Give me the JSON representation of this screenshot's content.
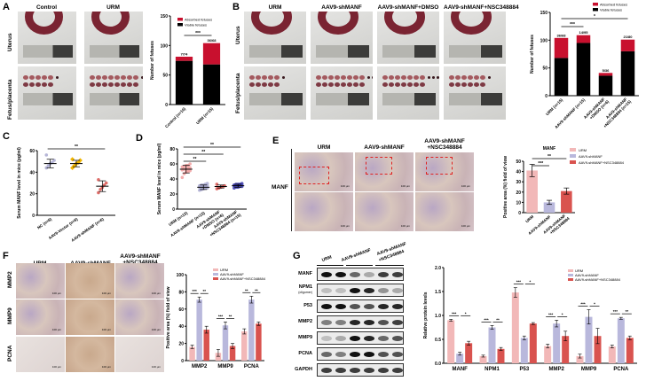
{
  "panels": {
    "A": {
      "letter": "A",
      "columns": [
        "Control",
        "URM"
      ],
      "rows": [
        "Uterus",
        "Fetus/placenta"
      ]
    },
    "B": {
      "letter": "B",
      "columns": [
        "URM",
        "AAV9-shMANF",
        "AAV9-shMANF+DMSO",
        "AAV9-shMANF+NSC348884"
      ],
      "rows": [
        "Uterus",
        "Fetus/placenta"
      ]
    },
    "C": {
      "letter": "C"
    },
    "D": {
      "letter": "D"
    },
    "E": {
      "letter": "E",
      "columns": [
        "URM",
        "AAV9-shMANF",
        "AAV9-shMANF",
        "+NSC348884"
      ],
      "row": "MANF",
      "scale": "100 μm"
    },
    "F": {
      "letter": "F",
      "columns": [
        "URM",
        "AAV9-shMANF",
        "AAV9-shMANF",
        "+NSC348884"
      ],
      "rows": [
        "MMP2",
        "MMP9",
        "PCNA"
      ],
      "scale": "100 μm"
    },
    "G": {
      "letter": "G",
      "lanes": [
        "URM",
        "AAV9-shMANF",
        "AAV9-shMANF",
        "+NSC348884"
      ],
      "blots": [
        "MANF",
        "NPM1",
        "P53",
        "MMP2",
        "MMP9",
        "PCNA",
        "GAPDH"
      ],
      "npm1_sub": "(oligomer)"
    }
  },
  "colors": {
    "absorbed": "#c8102e",
    "viable": "#000000",
    "urm": "#f2b8b8",
    "shmanf": "#b9b8dc",
    "nsc": "#d9534f"
  },
  "chart_data": [
    {
      "id": "A",
      "type": "bar",
      "stacked": true,
      "ylabel": "Number of fetuses",
      "ylim": [
        0,
        150
      ],
      "yticks": [
        0,
        50,
        100,
        150
      ],
      "categories": [
        "Control (n=10)",
        "URM (n=15)"
      ],
      "series": [
        {
          "name": "Viable fetuses",
          "values": [
            74,
            68
          ]
        },
        {
          "name": "Absorbed fetuses",
          "values": [
            7,
            36
          ]
        }
      ],
      "bar_labels": [
        "7/74",
        "36/68"
      ],
      "legend": [
        "Absorbed fetuses",
        "Viable fetuses"
      ],
      "significance": [
        {
          "from": 0,
          "to": 1,
          "label": "***"
        }
      ]
    },
    {
      "id": "B",
      "type": "bar",
      "stacked": true,
      "ylabel": "Number of fetuses",
      "ylim": [
        0,
        150
      ],
      "yticks": [
        0,
        50,
        100,
        150
      ],
      "categories": [
        "URM (n=15)",
        "AAV9-shMANF (n=15)",
        "AAV9-shMANF +DMSO (n=6)",
        "AAV9-shMANF +NSC348884 (n=15)"
      ],
      "series": [
        {
          "name": "Viable fetuses",
          "values": [
            68,
            95,
            36,
            80
          ]
        },
        {
          "name": "Absorbed fetuses",
          "values": [
            36,
            14,
            5,
            21
          ]
        }
      ],
      "bar_labels": [
        "36/68",
        "14/95",
        "5/36",
        "21/80"
      ],
      "legend": [
        "Absorbed fetuses",
        "Viable fetuses"
      ],
      "significance": [
        {
          "from": 0,
          "to": 1,
          "label": "***"
        },
        {
          "from": 0,
          "to": 3,
          "label": "*"
        }
      ]
    },
    {
      "id": "C",
      "type": "scatter",
      "ylabel": "Serum MANF level in mice (pg/ml)",
      "ylim": [
        0,
        60
      ],
      "yticks": [
        0,
        20,
        40,
        60
      ],
      "categories": [
        "NC (n=6)",
        "AAV9-Vector (n=6)",
        "AAV9-shMANF (n=6)"
      ],
      "colors": [
        "#a9a9d0",
        "#f0b400",
        "#d9534f"
      ],
      "points": [
        [
          44,
          46,
          48,
          49,
          51,
          56
        ],
        [
          44,
          46,
          48,
          49,
          51,
          52
        ],
        [
          21,
          24,
          26,
          28,
          30,
          33
        ]
      ],
      "mean": [
        48,
        48,
        27
      ],
      "sd": [
        4,
        3,
        5
      ],
      "significance": [
        {
          "from": 0,
          "to": 2,
          "label": "**"
        }
      ]
    },
    {
      "id": "D",
      "type": "scatter",
      "ylabel": "Serum MANF level in mice (pg/ml)",
      "ylim": [
        0,
        80
      ],
      "yticks": [
        0,
        20,
        40,
        60,
        80
      ],
      "categories": [
        "URM (n=15)",
        "AAV9-shMANF (n=15)",
        "AAV9-shMANF +DMSO (n=6)",
        "AAV9-shMANF +NSC348884 (n=15)"
      ],
      "colors": [
        "#f2a0a0",
        "#a9a9d0",
        "#d9534f",
        "#3f3fb0"
      ],
      "points": [
        [
          42,
          47,
          49,
          50,
          51,
          52,
          53,
          53,
          54,
          55,
          56,
          57,
          58,
          58,
          60
        ],
        [
          25,
          26,
          27,
          28,
          28,
          29,
          29,
          30,
          30,
          31,
          31,
          32,
          32,
          33,
          34
        ],
        [
          27,
          28,
          29,
          30,
          31,
          33
        ],
        [
          28,
          29,
          29,
          30,
          30,
          31,
          31,
          31,
          32,
          32,
          32,
          33,
          33,
          33,
          34
        ]
      ],
      "mean": [
        53,
        29,
        30,
        31
      ],
      "sd": [
        5,
        3,
        2,
        2
      ],
      "significance": [
        {
          "from": 0,
          "to": 1,
          "label": "**"
        },
        {
          "from": 0,
          "to": 2,
          "label": "**"
        },
        {
          "from": 0,
          "to": 3,
          "label": "**"
        }
      ]
    },
    {
      "id": "E",
      "type": "bar",
      "title": "MANF",
      "ylabel": "Positive area (%) field of view",
      "ylim": [
        0,
        50
      ],
      "yticks": [
        0,
        10,
        20,
        30,
        40,
        50
      ],
      "categories": [
        "URM",
        "AAV9-shMANF",
        "AAV9-shMANF +NSC348884"
      ],
      "values": [
        41,
        10,
        21
      ],
      "errors": [
        6,
        2,
        3
      ],
      "legend": [
        "URM",
        "AAV9-shMANF",
        "AAV9-shMANF+NSC348884"
      ],
      "significance": [
        {
          "from": 0,
          "to": 1,
          "label": "***"
        },
        {
          "from": 0,
          "to": 2,
          "label": "**"
        }
      ]
    },
    {
      "id": "F",
      "type": "bar",
      "ylabel": "Positive area (%) field of view",
      "ylim": [
        0,
        100
      ],
      "yticks": [
        0,
        20,
        40,
        60,
        80,
        100
      ],
      "categories": [
        "MMP2",
        "MMP9",
        "PCNA"
      ],
      "series": [
        {
          "name": "URM",
          "values": [
            16,
            9,
            34
          ],
          "errors": [
            2,
            4,
            3
          ]
        },
        {
          "name": "AAV9-shMANF",
          "values": [
            71,
            41,
            71
          ],
          "errors": [
            3,
            4,
            4
          ]
        },
        {
          "name": "AAV9-shMANF+NSC348884",
          "values": [
            36,
            17,
            43
          ],
          "errors": [
            4,
            3,
            2
          ]
        }
      ],
      "significance": [
        [
          "***",
          "**"
        ],
        [
          "***",
          "**"
        ],
        [
          "**",
          "**"
        ]
      ]
    },
    {
      "id": "G",
      "type": "bar",
      "ylabel": "Relative protein levels",
      "ylim": [
        0,
        2.0
      ],
      "yticks": [
        "0.0",
        "0.5",
        "1.0",
        "1.5",
        "2.0"
      ],
      "categories": [
        "MANF",
        "NPM1",
        "P53",
        "MMP2",
        "MMP9",
        "PCNA"
      ],
      "series": [
        {
          "name": "URM",
          "values": [
            0.9,
            0.15,
            1.48,
            0.36,
            0.15,
            0.35
          ],
          "errors": [
            0.02,
            0.02,
            0.1,
            0.04,
            0.04,
            0.03
          ]
        },
        {
          "name": "AAV9-shMANF",
          "values": [
            0.2,
            0.75,
            0.53,
            0.83,
            0.97,
            0.94
          ],
          "errors": [
            0.03,
            0.04,
            0.04,
            0.07,
            0.15,
            0.02
          ]
        },
        {
          "name": "AAV9-shMANF+NSC348884",
          "values": [
            0.42,
            0.3,
            0.83,
            0.57,
            0.57,
            0.53
          ],
          "errors": [
            0.04,
            0.03,
            0.02,
            0.1,
            0.16,
            0.04
          ]
        }
      ],
      "significance": [
        [
          "***",
          "*"
        ],
        [
          "***",
          "**"
        ],
        [
          "***",
          "*"
        ],
        [
          "***",
          "*"
        ],
        [
          "***",
          "*"
        ],
        [
          "***",
          "**"
        ]
      ]
    }
  ]
}
